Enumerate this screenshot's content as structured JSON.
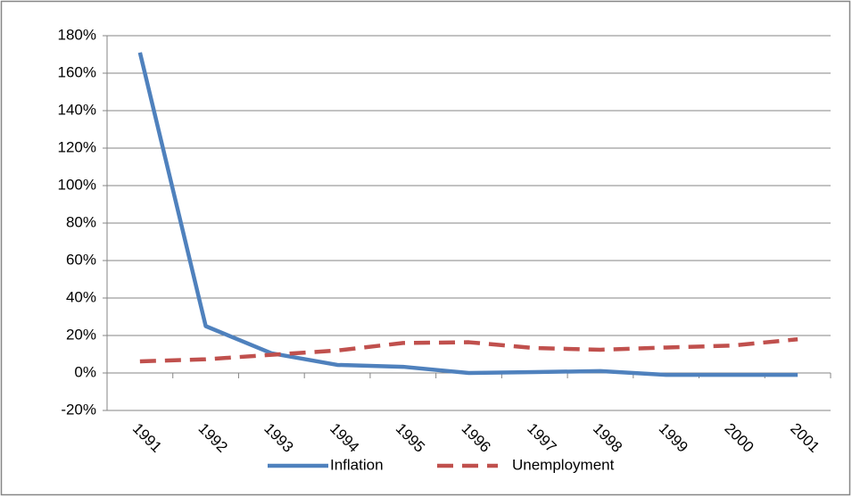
{
  "chart_data": {
    "type": "line",
    "categories": [
      "1991",
      "1992",
      "1993",
      "1994",
      "1995",
      "1996",
      "1997",
      "1998",
      "1999",
      "2000",
      "2001"
    ],
    "series": [
      {
        "name": "Inflation",
        "color": "#4f81bd",
        "dash": "solid",
        "values": [
          171,
          25,
          10.5,
          4.3,
          3.3,
          0,
          0.5,
          1,
          -1,
          -1,
          -1
        ]
      },
      {
        "name": "Unemployment",
        "color": "#c0504d",
        "dash": "dashed",
        "values": [
          6.2,
          7.3,
          9.7,
          12,
          16,
          16.4,
          13.3,
          12.4,
          13.6,
          14.6,
          18
        ]
      }
    ],
    "ylim": [
      -20,
      180
    ],
    "yticks": [
      {
        "value": -20,
        "label": "-20%"
      },
      {
        "value": 0,
        "label": "0%"
      },
      {
        "value": 20,
        "label": "20%"
      },
      {
        "value": 40,
        "label": "40%"
      },
      {
        "value": 60,
        "label": "60%"
      },
      {
        "value": 80,
        "label": "80%"
      },
      {
        "value": 100,
        "label": "100%"
      },
      {
        "value": 120,
        "label": "120%"
      },
      {
        "value": 140,
        "label": "140%"
      },
      {
        "value": 160,
        "label": "160%"
      },
      {
        "value": 180,
        "label": "180%"
      }
    ],
    "grid": true,
    "legend": "bottom"
  }
}
